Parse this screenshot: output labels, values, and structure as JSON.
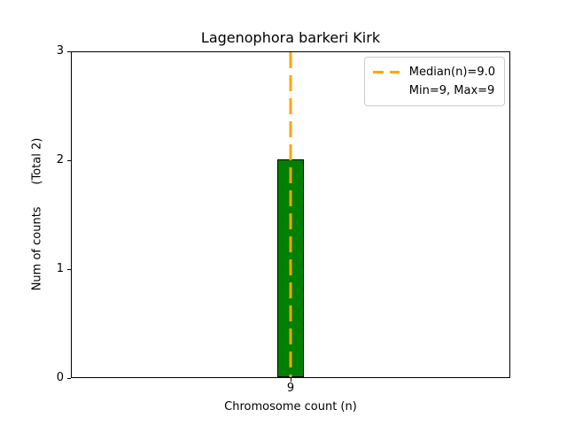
{
  "figure": {
    "background": "#ffffff"
  },
  "chart_data": {
    "type": "bar",
    "title": "Lagenophora barkeri Kirk",
    "xlabel": "Chromosome count (n)",
    "ylabel": "Num of counts      (Total 2)",
    "categories": [
      "9"
    ],
    "values": [
      2
    ],
    "total": 2,
    "ylim": [
      0,
      3
    ],
    "yticks": [
      "0",
      "1",
      "2",
      "3"
    ],
    "grid": "off",
    "bar_color": "#008000",
    "bar_edge_color": "#000000",
    "median_line": {
      "value": 9.0,
      "color": "#FFA500",
      "style": "dashed"
    },
    "legend": {
      "position": "upper-right",
      "entries": [
        {
          "label": "Median(n)=9.0",
          "marker": "orange-dashed-line"
        },
        {
          "label": "Min=9, Max=9",
          "marker": "none"
        }
      ]
    }
  }
}
